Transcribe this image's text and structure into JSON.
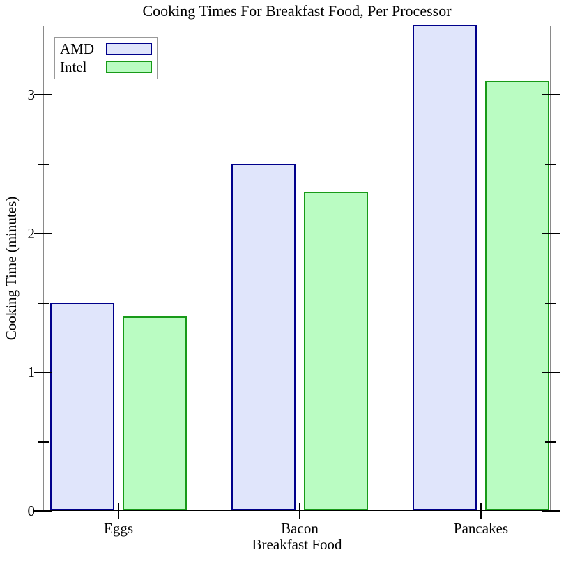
{
  "chart_data": {
    "type": "bar",
    "title": "Cooking Times For Breakfast Food, Per Processor",
    "xlabel": "Breakfast Food",
    "ylabel": "Cooking Time (minutes)",
    "categories": [
      "Eggs",
      "Bacon",
      "Pancakes"
    ],
    "series": [
      {
        "name": "AMD",
        "values": [
          1.5,
          2.5,
          3.5
        ],
        "fill_color": "#e0e5fb",
        "stroke_color": "#00008b"
      },
      {
        "name": "Intel",
        "values": [
          1.4,
          2.3,
          3.1
        ],
        "fill_color": "#bafcc2",
        "stroke_color": "#189a18"
      }
    ],
    "ylim": [
      0,
      3.5
    ],
    "yticks": [
      0,
      1,
      2,
      3
    ],
    "minor_yticks": [
      0.5,
      1.5,
      2.5
    ],
    "legend_position": "top-left",
    "grid": false,
    "frame_color": "#8a8a8a",
    "axis_color": "#000000"
  }
}
